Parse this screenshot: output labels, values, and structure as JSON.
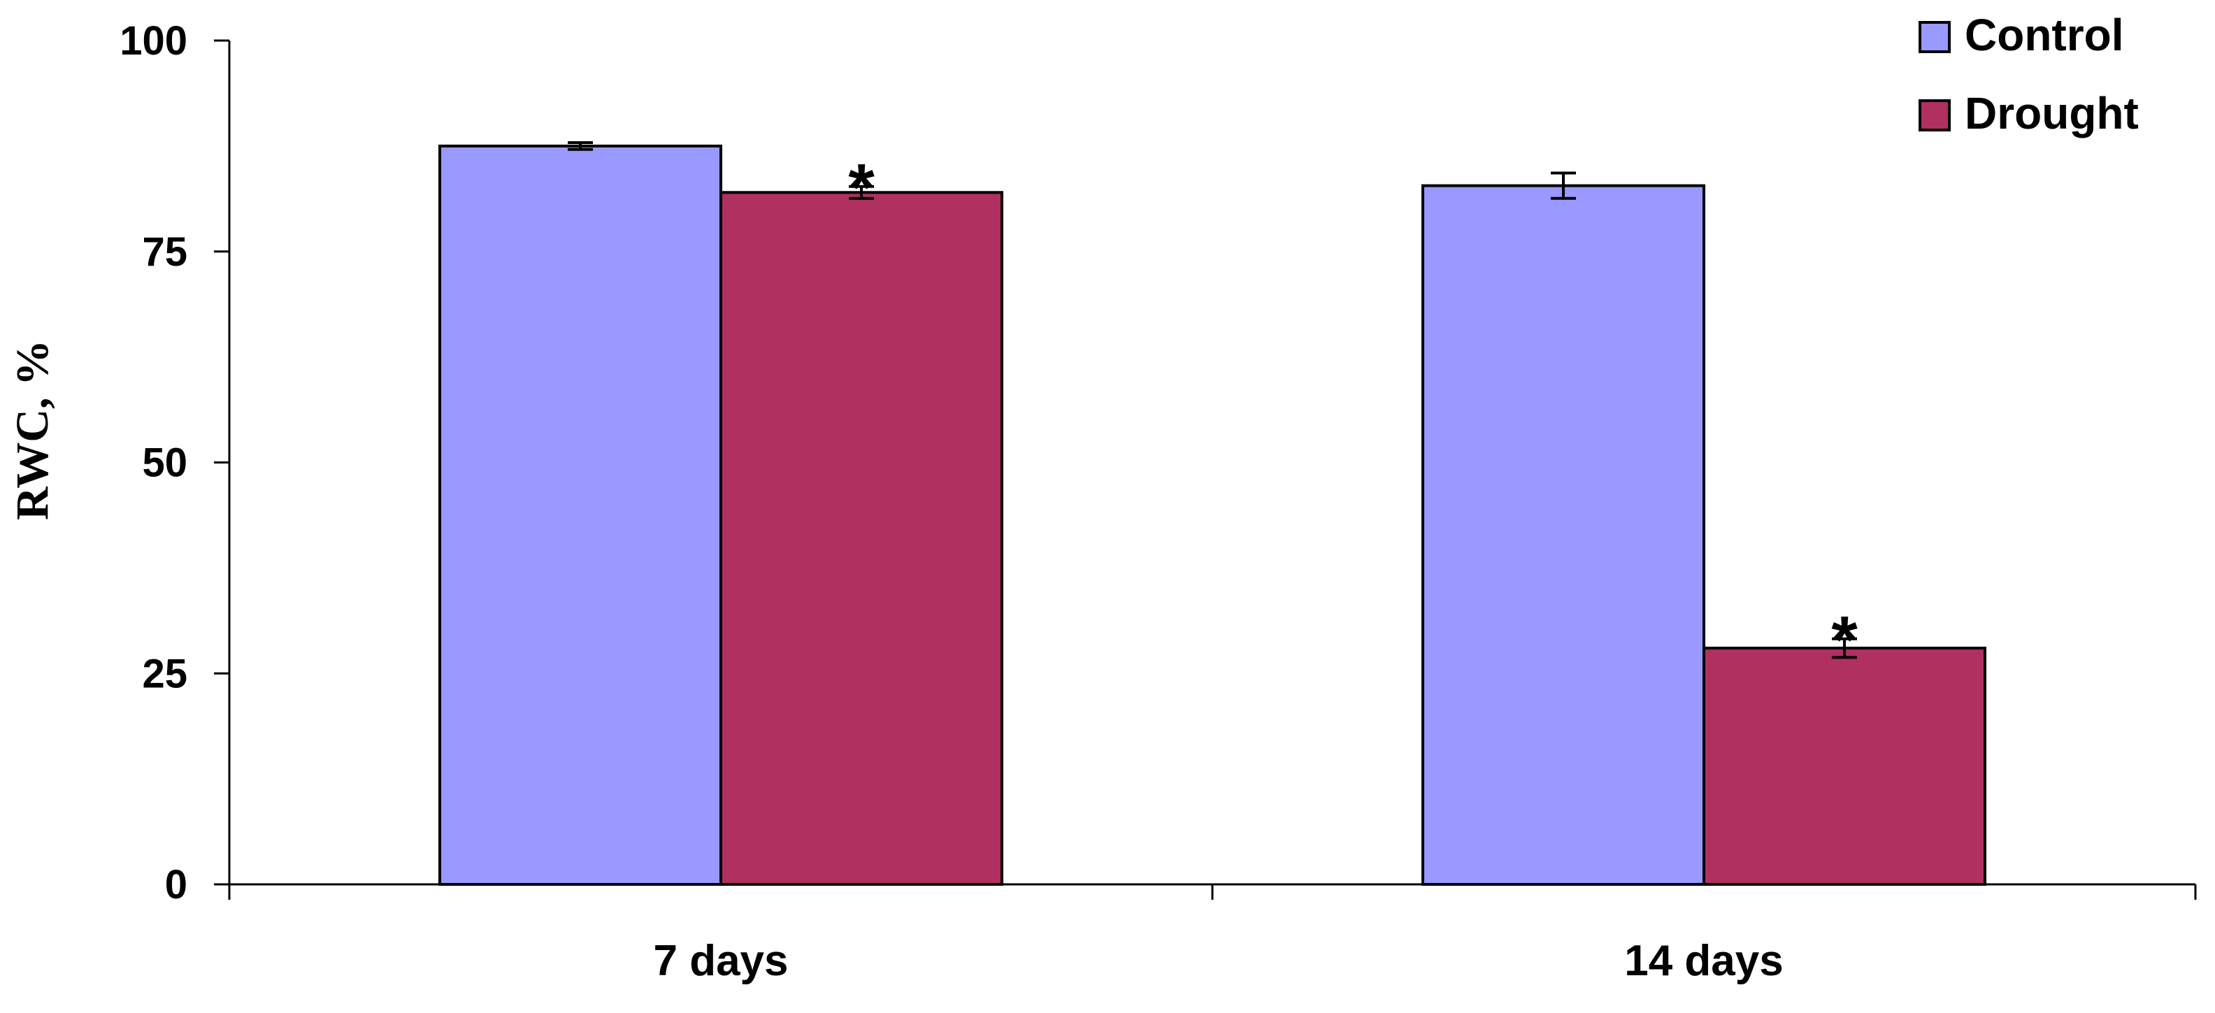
{
  "chart_data": {
    "type": "bar",
    "title": "",
    "xlabel": "",
    "ylabel": "RWC, %",
    "ylim": [
      0,
      100
    ],
    "yticks": [
      0,
      25,
      50,
      75,
      100
    ],
    "categories": [
      "7 days",
      "14 days"
    ],
    "series": [
      {
        "name": "Control",
        "color": "#9999ff",
        "values": [
          87.5,
          82.8
        ],
        "errors": [
          0.4,
          1.5
        ],
        "significance": [
          "",
          ""
        ]
      },
      {
        "name": "Drought",
        "color": "#b03060",
        "values": [
          82.0,
          28.0
        ],
        "errors": [
          0.7,
          1.1
        ],
        "significance": [
          "*",
          "*"
        ]
      }
    ],
    "legend": {
      "position": "top-right"
    },
    "grid": false
  }
}
